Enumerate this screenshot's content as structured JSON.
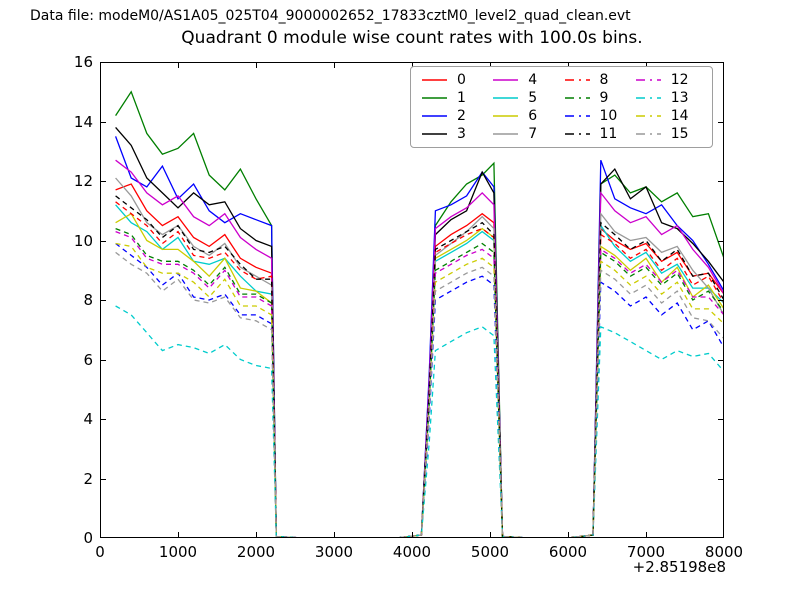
{
  "header": {
    "data_file_label": "Data file: modeM0/AS1A05_025T04_9000002652_17833cztM0_level2_quad_clean.evt"
  },
  "chart_data": {
    "type": "line",
    "title": "Quadrant 0 module wise count rates with 100.0s bins.",
    "xlabel": "",
    "ylabel": "",
    "x_offset_text": "+2.85198e8",
    "xlim": [
      0,
      8000
    ],
    "ylim": [
      0,
      16
    ],
    "grid": false,
    "legend_position": "upper center, 4 columns, labels 0-15",
    "bin_size_seconds": 100.0,
    "xticks": {
      "values": [
        0,
        1000,
        2000,
        3000,
        4000,
        5000,
        6000,
        7000,
        8000
      ],
      "labels": [
        "0",
        "1000",
        "2000",
        "3000",
        "4000",
        "5000",
        "6000",
        "7000",
        "8000"
      ]
    },
    "yticks": {
      "values": [
        0,
        2,
        4,
        6,
        8,
        10,
        12,
        14,
        16
      ],
      "labels": [
        "0",
        "2",
        "4",
        "6",
        "8",
        "10",
        "12",
        "14",
        "16"
      ]
    },
    "x": [
      200,
      400,
      600,
      800,
      1000,
      1200,
      1400,
      1600,
      1800,
      2000,
      2200,
      2260,
      2600,
      3200,
      3800,
      4120,
      4220,
      4300,
      4500,
      4700,
      4900,
      5050,
      5160,
      5500,
      6000,
      6320,
      6420,
      6600,
      6800,
      7000,
      7200,
      7400,
      7600,
      7800,
      8000
    ],
    "series": [
      {
        "name": "0",
        "color": "#ff0000",
        "dashed": false,
        "values": [
          11.7,
          11.9,
          11.0,
          10.5,
          10.8,
          10.1,
          9.8,
          10.2,
          9.4,
          9.1,
          8.9,
          0.05,
          0,
          0,
          0,
          0.1,
          4.9,
          9.8,
          10.2,
          10.5,
          10.9,
          10.6,
          0.05,
          0,
          0,
          0.1,
          10.4,
          10.0,
          9.7,
          9.9,
          9.3,
          9.6,
          8.8,
          8.9,
          8.2
        ]
      },
      {
        "name": "1",
        "color": "#007f00",
        "dashed": false,
        "values": [
          14.2,
          15.0,
          13.6,
          12.9,
          13.1,
          13.6,
          12.2,
          11.7,
          12.4,
          11.4,
          10.5,
          0.05,
          0,
          0,
          0,
          0.1,
          5.3,
          10.5,
          11.3,
          11.9,
          12.2,
          12.6,
          0.05,
          0,
          0,
          0.1,
          11.9,
          12.2,
          11.6,
          11.8,
          11.3,
          11.6,
          10.8,
          10.9,
          9.4
        ]
      },
      {
        "name": "2",
        "color": "#0000ff",
        "dashed": false,
        "values": [
          13.5,
          12.1,
          11.8,
          12.5,
          11.4,
          11.9,
          11.0,
          10.6,
          10.9,
          10.7,
          10.5,
          0.05,
          0,
          0,
          0,
          0.1,
          5.5,
          11.0,
          11.2,
          11.5,
          12.3,
          11.8,
          0.05,
          0,
          0,
          0.1,
          12.7,
          11.4,
          11.1,
          10.9,
          11.2,
          10.5,
          10.0,
          9.2,
          8.3
        ]
      },
      {
        "name": "3",
        "color": "#000000",
        "dashed": false,
        "values": [
          13.8,
          13.2,
          12.1,
          11.6,
          11.1,
          11.6,
          11.2,
          11.3,
          10.4,
          10.0,
          9.8,
          0.05,
          0,
          0,
          0,
          0.1,
          5.1,
          10.2,
          10.7,
          11.0,
          12.3,
          11.6,
          0.05,
          0,
          0,
          0.1,
          11.9,
          12.4,
          11.4,
          11.8,
          10.6,
          10.4,
          9.9,
          9.3,
          8.6
        ]
      },
      {
        "name": "4",
        "color": "#cc00cc",
        "dashed": false,
        "values": [
          12.7,
          12.3,
          11.6,
          11.2,
          11.5,
          10.8,
          10.5,
          10.9,
          10.1,
          9.7,
          9.4,
          0.05,
          0,
          0,
          0,
          0.1,
          5.2,
          10.4,
          10.8,
          11.1,
          11.6,
          11.2,
          0.05,
          0,
          0,
          0.1,
          11.6,
          11.0,
          10.6,
          10.8,
          10.2,
          10.5,
          9.7,
          9.1,
          8.2
        ]
      },
      {
        "name": "5",
        "color": "#00cccc",
        "dashed": false,
        "values": [
          11.2,
          10.6,
          10.3,
          9.7,
          10.1,
          9.3,
          9.2,
          9.4,
          8.8,
          8.3,
          8.2,
          0.05,
          0,
          0,
          0,
          0.1,
          4.6,
          9.3,
          9.6,
          9.9,
          10.3,
          10.0,
          0.05,
          0,
          0,
          0.1,
          10.5,
          9.8,
          9.3,
          9.6,
          8.9,
          9.2,
          8.4,
          8.4,
          7.9
        ]
      },
      {
        "name": "6",
        "color": "#cccc00",
        "dashed": false,
        "values": [
          10.6,
          10.9,
          10.0,
          9.7,
          9.7,
          9.3,
          8.8,
          9.4,
          8.4,
          8.3,
          7.9,
          0.05,
          0,
          0,
          0,
          0.1,
          4.7,
          9.4,
          9.7,
          10.0,
          10.4,
          10.1,
          0.05,
          0,
          0,
          0.1,
          9.8,
          9.5,
          9.0,
          9.4,
          8.6,
          9.1,
          8.1,
          8.5,
          7.7
        ]
      },
      {
        "name": "7",
        "color": "#999999",
        "dashed": false,
        "values": [
          12.1,
          11.5,
          10.6,
          10.2,
          10.5,
          9.8,
          9.5,
          9.9,
          9.1,
          8.8,
          8.5,
          0.05,
          0,
          0,
          0,
          0.1,
          4.8,
          9.5,
          9.9,
          10.3,
          10.8,
          10.4,
          0.05,
          0,
          0,
          0.1,
          10.9,
          10.3,
          10.0,
          10.1,
          9.6,
          9.8,
          9.0,
          8.4,
          7.5
        ]
      },
      {
        "name": "8",
        "color": "#ff0000",
        "dashed": true,
        "values": [
          11.3,
          10.9,
          10.5,
          9.9,
          10.3,
          9.5,
          9.4,
          9.6,
          9.0,
          8.7,
          8.8,
          0.05,
          0,
          0,
          0,
          0.1,
          4.8,
          9.6,
          9.9,
          10.2,
          10.4,
          10.1,
          0.05,
          0,
          0,
          0.1,
          10.2,
          9.9,
          9.4,
          9.7,
          9.0,
          9.4,
          8.5,
          8.8,
          7.9
        ]
      },
      {
        "name": "9",
        "color": "#007f00",
        "dashed": true,
        "values": [
          10.4,
          10.2,
          9.5,
          9.3,
          9.3,
          9.0,
          8.5,
          9.1,
          8.2,
          8.2,
          7.9,
          0.05,
          0,
          0,
          0,
          0.1,
          4.5,
          9.0,
          9.3,
          9.6,
          9.9,
          9.6,
          0.05,
          0,
          0,
          0.1,
          9.6,
          9.3,
          8.8,
          9.1,
          8.5,
          8.9,
          8.0,
          8.3,
          7.6
        ]
      },
      {
        "name": "10",
        "color": "#0000ff",
        "dashed": true,
        "values": [
          9.9,
          9.5,
          9.1,
          8.5,
          8.9,
          8.1,
          8.0,
          8.2,
          7.5,
          7.5,
          7.2,
          0.05,
          0,
          0,
          0,
          0.1,
          4.0,
          8.0,
          8.3,
          8.6,
          8.8,
          8.5,
          0.05,
          0,
          0,
          0.1,
          8.6,
          8.3,
          7.8,
          8.1,
          7.5,
          7.9,
          7.0,
          7.3,
          6.4
        ]
      },
      {
        "name": "11",
        "color": "#000000",
        "dashed": true,
        "values": [
          11.5,
          11.1,
          10.7,
          10.1,
          10.5,
          9.7,
          9.6,
          9.8,
          9.2,
          8.7,
          8.7,
          0.05,
          0,
          0,
          0,
          0.1,
          4.9,
          9.7,
          10.0,
          10.3,
          10.6,
          10.2,
          0.05,
          0,
          0,
          0.1,
          10.6,
          10.2,
          9.7,
          10.0,
          9.3,
          9.7,
          8.8,
          8.9,
          8.0
        ]
      },
      {
        "name": "12",
        "color": "#cc00cc",
        "dashed": true,
        "values": [
          10.3,
          10.1,
          9.4,
          9.2,
          9.2,
          8.9,
          8.4,
          9.0,
          8.1,
          8.1,
          7.8,
          0.05,
          0,
          0,
          0,
          0.1,
          4.4,
          8.9,
          9.2,
          9.5,
          9.7,
          9.4,
          0.05,
          0,
          0,
          0.1,
          9.7,
          9.4,
          8.9,
          9.2,
          8.6,
          9.0,
          8.1,
          8.1,
          7.5
        ]
      },
      {
        "name": "13",
        "color": "#00cccc",
        "dashed": true,
        "values": [
          7.8,
          7.5,
          6.9,
          6.3,
          6.5,
          6.4,
          6.2,
          6.5,
          6.0,
          5.8,
          5.7,
          0.05,
          0,
          0,
          0,
          0.1,
          3.2,
          6.3,
          6.6,
          6.9,
          7.1,
          6.8,
          0.05,
          0,
          0,
          0.1,
          7.1,
          6.9,
          6.6,
          6.3,
          6.0,
          6.3,
          6.1,
          6.2,
          5.6
        ]
      },
      {
        "name": "14",
        "color": "#cccc00",
        "dashed": true,
        "values": [
          9.9,
          9.8,
          9.1,
          8.9,
          8.9,
          8.6,
          8.1,
          8.7,
          7.8,
          7.8,
          7.5,
          0.05,
          0,
          0,
          0,
          0.1,
          4.3,
          8.6,
          8.9,
          9.2,
          9.4,
          9.1,
          0.05,
          0,
          0,
          0.1,
          9.3,
          9.0,
          8.5,
          8.8,
          8.2,
          8.6,
          7.7,
          7.7,
          7.2
        ]
      },
      {
        "name": "15",
        "color": "#999999",
        "dashed": true,
        "values": [
          9.6,
          9.2,
          8.9,
          8.3,
          8.7,
          8.0,
          7.9,
          8.1,
          7.4,
          7.3,
          7.0,
          0.05,
          0,
          0,
          0,
          0.1,
          4.2,
          8.3,
          8.6,
          8.9,
          9.1,
          8.8,
          0.05,
          0,
          0,
          0.1,
          9.0,
          8.7,
          8.2,
          8.5,
          7.9,
          8.3,
          7.4,
          7.3,
          6.7
        ]
      }
    ]
  },
  "colors": {
    "background": "#ffffff",
    "axis": "#000000",
    "legend_border": "#9e9e9e"
  }
}
